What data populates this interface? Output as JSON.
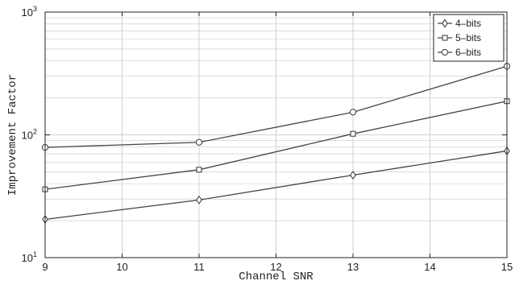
{
  "chart_data": {
    "type": "line",
    "xlabel": "Channel SNR",
    "ylabel": "Improvement Factor",
    "x_scale": "linear",
    "y_scale": "log",
    "xlim": [
      9,
      15
    ],
    "ylim": [
      10,
      1000
    ],
    "x_ticks": [
      9,
      10,
      11,
      12,
      13,
      14,
      15
    ],
    "x_tick_labels": [
      "9",
      "10",
      "11",
      "12",
      "13",
      "14",
      "15"
    ],
    "y_ticks": [
      10,
      100,
      1000
    ],
    "grid": true,
    "legend_position": "top-right",
    "x": [
      9,
      11,
      13,
      15
    ],
    "series": [
      {
        "name": "4–bits",
        "marker": "diamond",
        "values": [
          20.5,
          29.5,
          47,
          74
        ]
      },
      {
        "name": "5–bits",
        "marker": "square",
        "values": [
          36,
          52,
          102,
          188
        ]
      },
      {
        "name": "6–bits",
        "marker": "circle",
        "values": [
          79,
          87,
          153,
          362
        ]
      }
    ],
    "colors": {
      "line": "#444444",
      "grid": "#d0d0d0",
      "axis": "#222222"
    }
  }
}
